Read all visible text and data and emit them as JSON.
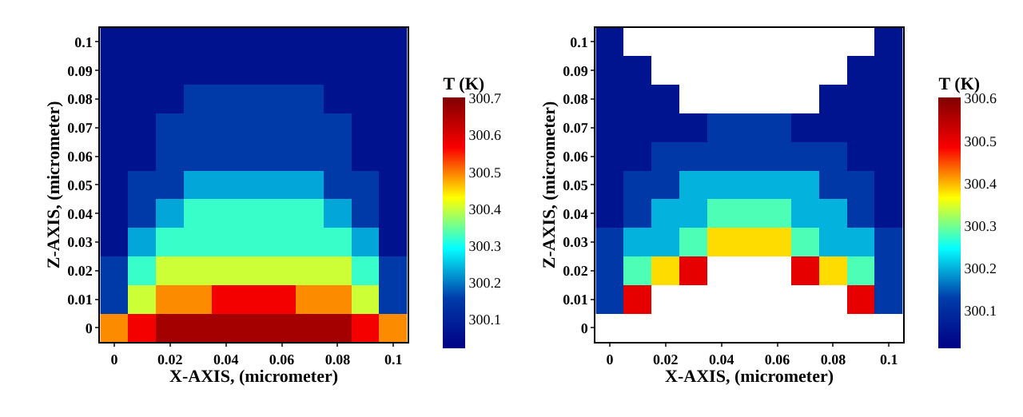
{
  "chart_data": [
    {
      "type": "heatmap",
      "xlabel": "X-AXIS, (micrometer)",
      "ylabel": "Z-AXIS, (micrometer)",
      "clabel": "T (K)",
      "categories": [
        "0",
        null,
        "0.02",
        null,
        "0.04",
        null,
        "0.06",
        null,
        "0.08",
        null,
        "0.1"
      ],
      "y_categories": [
        "0.1",
        "0.09",
        "0.08",
        "0.07",
        "0.06",
        "0.05",
        "0.04",
        "0.03",
        "0.02",
        "0.01",
        "0"
      ],
      "cells": [
        [
          300.06,
          300.06,
          300.06,
          300.06,
          300.06,
          300.06,
          300.06,
          300.06,
          300.06,
          300.06,
          300.06
        ],
        [
          300.06,
          300.06,
          300.06,
          300.06,
          300.06,
          300.06,
          300.06,
          300.06,
          300.06,
          300.06,
          300.06
        ],
        [
          300.06,
          300.06,
          300.06,
          300.15,
          300.15,
          300.15,
          300.15,
          300.15,
          300.06,
          300.06,
          300.06
        ],
        [
          300.06,
          300.06,
          300.15,
          300.15,
          300.15,
          300.15,
          300.15,
          300.15,
          300.15,
          300.06,
          300.06
        ],
        [
          300.06,
          300.06,
          300.15,
          300.15,
          300.15,
          300.15,
          300.15,
          300.15,
          300.15,
          300.06,
          300.06
        ],
        [
          300.06,
          300.15,
          300.15,
          300.23,
          300.23,
          300.23,
          300.23,
          300.23,
          300.15,
          300.15,
          300.06
        ],
        [
          300.06,
          300.15,
          300.23,
          300.32,
          300.32,
          300.32,
          300.32,
          300.32,
          300.23,
          300.15,
          300.06
        ],
        [
          300.06,
          300.23,
          300.32,
          300.32,
          300.32,
          300.32,
          300.32,
          300.32,
          300.32,
          300.23,
          300.06
        ],
        [
          300.15,
          300.32,
          300.4,
          300.4,
          300.4,
          300.4,
          300.4,
          300.4,
          300.4,
          300.32,
          300.15
        ],
        [
          300.15,
          300.4,
          300.49,
          300.49,
          300.57,
          300.57,
          300.57,
          300.49,
          300.49,
          300.4,
          300.15
        ],
        [
          300.49,
          300.57,
          300.66,
          300.66,
          300.66,
          300.66,
          300.66,
          300.66,
          300.66,
          300.57,
          300.49
        ]
      ],
      "clim": [
        300.02,
        300.7
      ],
      "cticks": [
        300.1,
        300.2,
        300.3,
        300.4,
        300.5,
        300.6,
        300.7
      ]
    },
    {
      "type": "heatmap",
      "xlabel": "X-AXIS, (micrometer)",
      "ylabel": "Z-AXIS, (micrometer)",
      "clabel": "T (K)",
      "categories": [
        "0",
        null,
        "0.02",
        null,
        "0.04",
        null,
        "0.06",
        null,
        "0.08",
        null,
        "0.1"
      ],
      "y_categories": [
        "0.1",
        "0.09",
        "0.08",
        "0.07",
        "0.06",
        "0.05",
        "0.04",
        "0.03",
        "0.02",
        "0.01",
        "0"
      ],
      "cells": [
        [
          300.05,
          null,
          null,
          null,
          null,
          null,
          null,
          null,
          null,
          null,
          300.05
        ],
        [
          300.05,
          300.05,
          null,
          null,
          null,
          null,
          null,
          null,
          null,
          300.05,
          300.05
        ],
        [
          300.05,
          300.05,
          300.05,
          null,
          null,
          null,
          null,
          null,
          300.05,
          300.05,
          300.05
        ],
        [
          300.05,
          300.05,
          300.05,
          300.05,
          300.12,
          300.12,
          300.12,
          300.05,
          300.05,
          300.05,
          300.05
        ],
        [
          300.05,
          300.05,
          300.12,
          300.12,
          300.12,
          300.12,
          300.12,
          300.12,
          300.12,
          300.05,
          300.05
        ],
        [
          300.05,
          300.12,
          300.12,
          300.2,
          300.2,
          300.2,
          300.2,
          300.2,
          300.12,
          300.12,
          300.05
        ],
        [
          300.05,
          300.12,
          300.2,
          300.2,
          300.28,
          300.28,
          300.28,
          300.2,
          300.2,
          300.12,
          300.05
        ],
        [
          300.12,
          300.2,
          300.2,
          300.28,
          300.38,
          300.38,
          300.38,
          300.28,
          300.2,
          300.2,
          300.12
        ],
        [
          300.12,
          300.28,
          300.38,
          300.5,
          null,
          null,
          null,
          300.5,
          300.38,
          300.28,
          300.12
        ],
        [
          300.12,
          300.5,
          null,
          null,
          null,
          null,
          null,
          null,
          null,
          300.5,
          300.12
        ],
        [
          null,
          null,
          null,
          null,
          null,
          null,
          null,
          null,
          null,
          null,
          null
        ]
      ],
      "clim": [
        300.01,
        300.6
      ],
      "cticks": [
        300.1,
        300.2,
        300.3,
        300.4,
        300.5,
        300.6
      ]
    }
  ]
}
